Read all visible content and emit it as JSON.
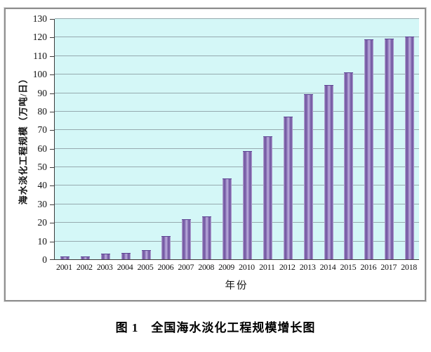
{
  "figure": {
    "frame_color": "#8f8f8f",
    "background": "#ffffff"
  },
  "chart_data": {
    "type": "bar",
    "title": "",
    "xlabel": "年份",
    "ylabel": "海水淡化工程规模（万吨/日）",
    "categories": [
      "2001",
      "2002",
      "2003",
      "2004",
      "2005",
      "2006",
      "2007",
      "2008",
      "2009",
      "2010",
      "2011",
      "2012",
      "2013",
      "2014",
      "2015",
      "2016",
      "2017",
      "2018"
    ],
    "values": [
      1.5,
      1.5,
      3,
      3.5,
      5,
      12.5,
      21.5,
      23,
      43.5,
      58.5,
      66.5,
      77,
      89,
      94,
      101,
      118.5,
      119,
      120
    ],
    "series_name": "全国海水淡化工程规模",
    "ylim": [
      0,
      130
    ],
    "ytick_step": 10,
    "grid": "horizontal",
    "legend": "none",
    "plot_background": "#d4f7f7",
    "gridline_color": "#96aaaf",
    "bar_color_dark": "#6e539e",
    "bar_color_light": "#bfb0de"
  },
  "caption": "图 1　全国海水淡化工程规模增长图"
}
